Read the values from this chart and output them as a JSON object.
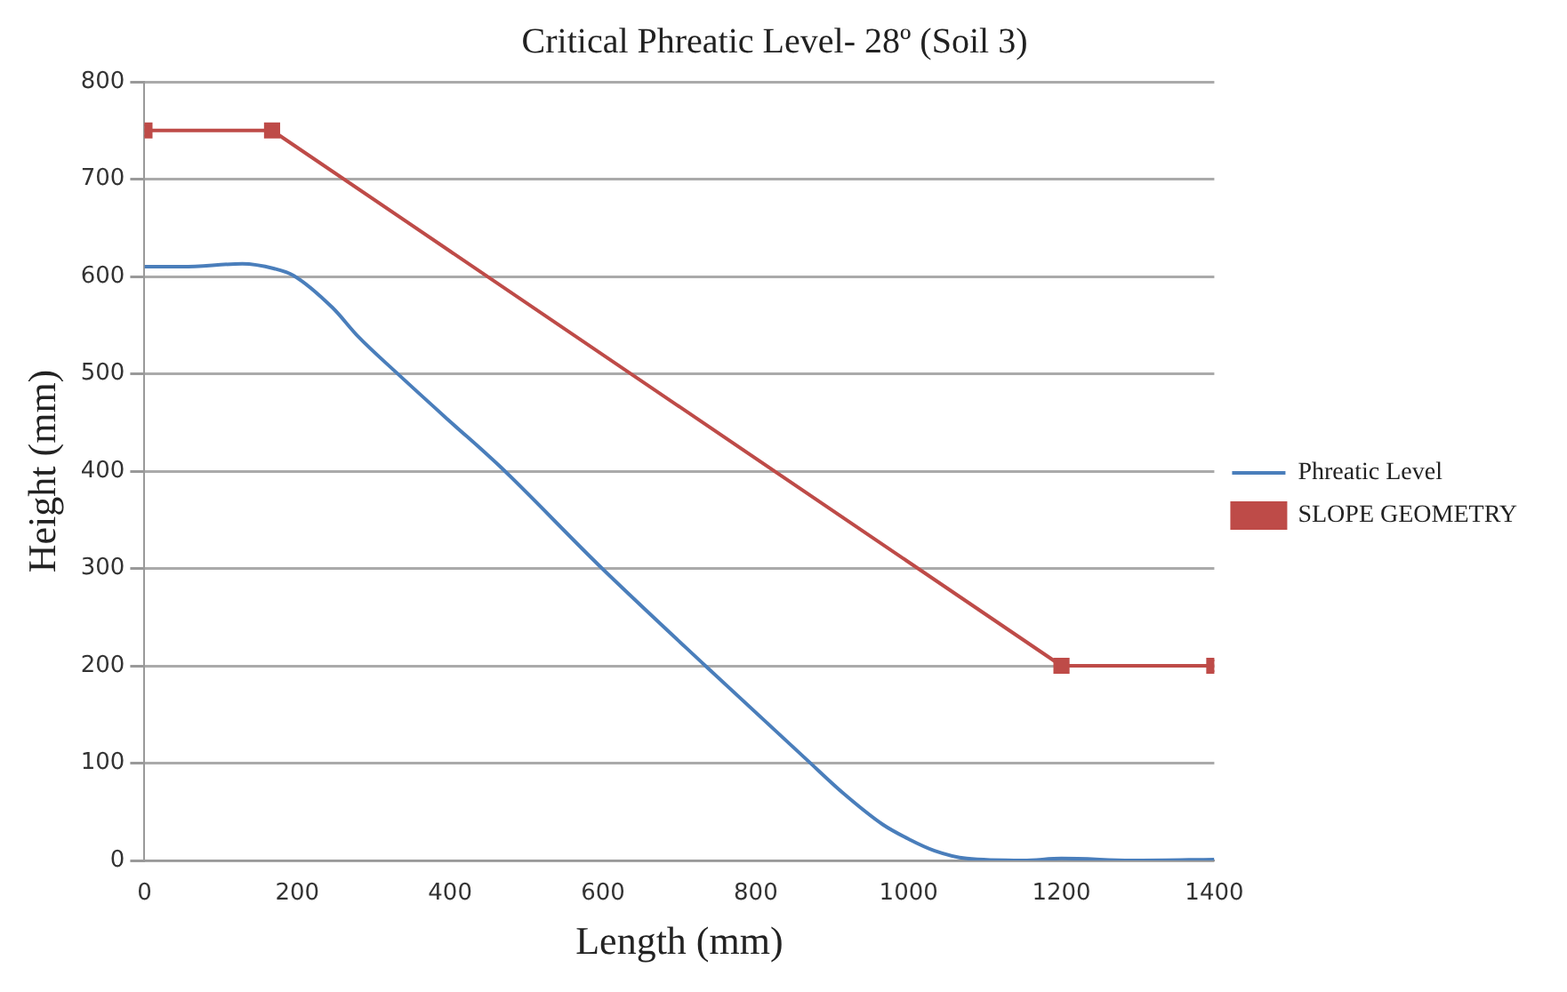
{
  "chart_data": {
    "type": "line",
    "title": "Critical Phreatic Level- 28º (Soil 3)",
    "xlabel": "Length (mm)",
    "ylabel": "Height (mm)",
    "xlim": [
      0,
      1400
    ],
    "xticks": [
      0,
      200,
      400,
      600,
      800,
      1000,
      1200,
      1400
    ],
    "ylim": [
      0,
      800
    ],
    "yticks": [
      0,
      100,
      200,
      300,
      400,
      500,
      600,
      700,
      800
    ],
    "grid": "y",
    "legend": "right",
    "series": [
      {
        "name": "Phreatic Level",
        "color": "#4a7ebb",
        "marker": "none",
        "x": [
          0,
          50,
          128,
          170,
          195,
          246,
          280,
          330,
          397,
          465,
          595,
          734,
          866,
          916,
          966,
          1000,
          1034,
          1076,
          1150,
          1200,
          1300,
          1400
        ],
        "values": [
          610,
          610,
          613,
          608,
          601,
          568,
          538,
          501,
          453,
          405,
          303,
          200,
          104,
          68,
          37,
          22,
          10,
          2,
          0,
          2,
          0,
          1
        ]
      },
      {
        "name": "SLOPE GEOMETRY",
        "color": "#be4b48",
        "marker": "square",
        "x": [
          0,
          167,
          1200,
          1400
        ],
        "values": [
          750,
          750,
          200,
          200
        ]
      }
    ]
  }
}
